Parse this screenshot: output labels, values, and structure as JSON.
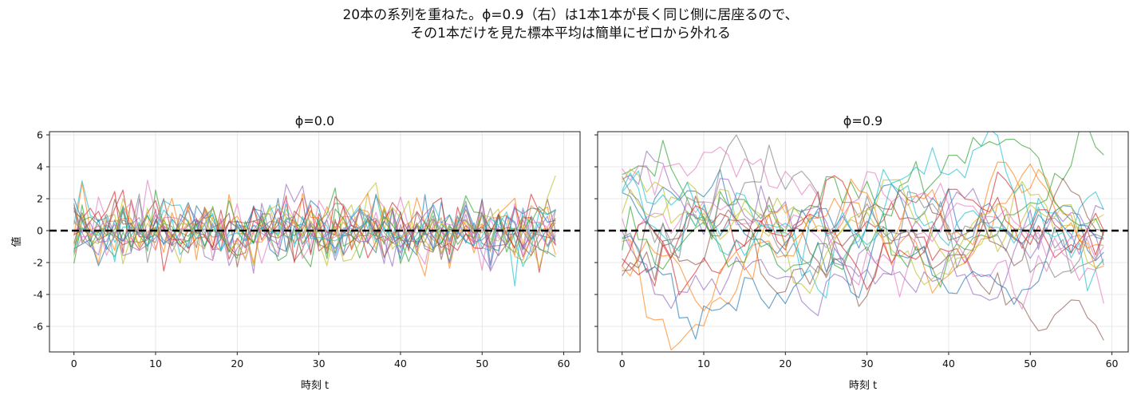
{
  "figure": {
    "suptitle_line1": "20本の系列を重ねた。ϕ=0.9（右）は1本1本が長く同じ側に居座るので、",
    "suptitle_line2": "その1本だけを見た標本平均は簡単にゼロから外れる"
  },
  "chart_data": [
    {
      "type": "line",
      "title": "ϕ=0.0",
      "xlabel": "時刻 t",
      "ylabel": "値",
      "xlim": [
        -3,
        62
      ],
      "ylim": [
        -7.6,
        6.2
      ],
      "xticks": [
        0,
        10,
        20,
        30,
        40,
        50,
        60
      ],
      "yticks": [
        -6,
        -4,
        -2,
        0,
        2,
        4,
        6
      ],
      "grid": true,
      "phi": 0.0,
      "n_series": 20,
      "n_points": 60,
      "reference_line": 0,
      "seed": 11
    },
    {
      "type": "line",
      "title": "ϕ=0.9",
      "xlabel": "時刻 t",
      "ylabel": "",
      "xlim": [
        -3,
        62
      ],
      "ylim": [
        -7.6,
        6.2
      ],
      "xticks": [
        0,
        10,
        20,
        30,
        40,
        50,
        60
      ],
      "yticks": [
        -6,
        -4,
        -2,
        0,
        2,
        4,
        6
      ],
      "grid": true,
      "phi": 0.9,
      "n_series": 20,
      "n_points": 60,
      "reference_line": 0,
      "seed": 29
    }
  ],
  "colors": {
    "series": [
      "#1f77b4",
      "#ff7f0e",
      "#2ca02c",
      "#d62728",
      "#9467bd",
      "#8c564b",
      "#e377c2",
      "#7f7f7f",
      "#bcbd22",
      "#17becf"
    ],
    "reference_line": "#000000",
    "grid": "#e0e0e0"
  }
}
